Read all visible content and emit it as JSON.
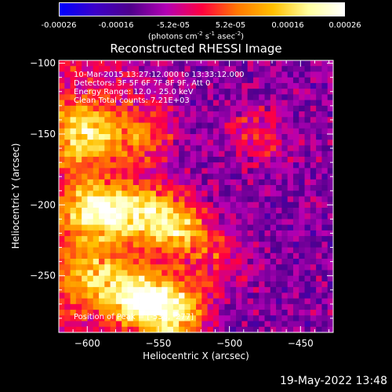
{
  "colorbar": {
    "ticks": [
      "-0.00026",
      "-0.00016",
      "-5.2e-05",
      "5.2e-05",
      "0.00016",
      "0.00026"
    ],
    "unit_prefix": "(photons cm",
    "unit_sup1": "-2",
    "unit_mid1": " s",
    "unit_sup2": "-1",
    "unit_mid2": " asec",
    "unit_sup3": "-2",
    "unit_suffix": ")",
    "colormap": [
      "#0000ff",
      "#3c00c8",
      "#50008c",
      "#b400b4",
      "#ff0040",
      "#ff7800",
      "#ffc000",
      "#ffffa0",
      "#ffffff"
    ]
  },
  "plot": {
    "title": "Reconstructed RHESSI Image",
    "info_lines": [
      "10-Mar-2015 13:27:12.000 to 13:33:12.000",
      "Detectors: 3F 5F 6F 7F 8F 9F, Att 0",
      "Energy Range: 12.0 - 25.0 keV",
      "Clean     Total counts: 7.21E+03"
    ],
    "peak_text": "Position of Peak = [-538, -277]"
  },
  "chart_data": {
    "type": "heatmap",
    "title": "Reconstructed RHESSI Image",
    "xlabel": "Heliocentric X (arcsec)",
    "ylabel": "Heliocentric Y (arcsec)",
    "xlim": [
      -620,
      -427
    ],
    "ylim": [
      -290,
      -98
    ],
    "xticks": [
      -600,
      -550,
      -500,
      -450
    ],
    "yticks": [
      -100,
      -150,
      -200,
      -250
    ],
    "value_range": [
      -0.00026,
      0.00026
    ],
    "grid_cols": 48,
    "grid_rows": 48,
    "peak_position": [
      -538,
      -277
    ],
    "regions": [
      {
        "x": -565,
        "y": -205,
        "level": 0.75
      },
      {
        "x": -600,
        "y": -150,
        "level": 0.7
      },
      {
        "x": -595,
        "y": -205,
        "level": 0.72
      },
      {
        "x": -565,
        "y": -265,
        "level": 0.8
      },
      {
        "x": -540,
        "y": -275,
        "level": 0.85
      },
      {
        "x": -535,
        "y": -215,
        "level": 0.7
      },
      {
        "x": -560,
        "y": -150,
        "level": 0.55
      },
      {
        "x": -595,
        "y": -250,
        "level": 0.6
      },
      {
        "x": -480,
        "y": -150,
        "level": 0.5
      },
      {
        "x": -510,
        "y": -240,
        "level": 0.5
      }
    ],
    "footer": "19-May-2022 13:48"
  }
}
